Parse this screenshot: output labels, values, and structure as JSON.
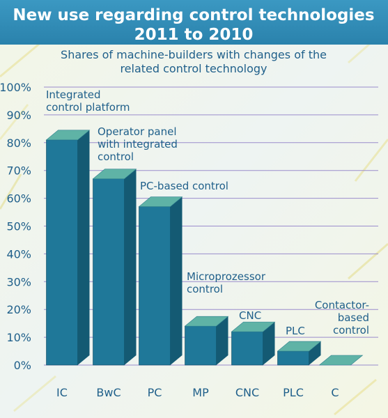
{
  "chart_data": {
    "type": "bar",
    "title_lines": [
      "New use regarding control technologies",
      "2011 to 2010"
    ],
    "subtitle_lines": [
      "Shares of machine-builders with changes of the",
      "related control technology"
    ],
    "categories": [
      "IC",
      "BwC",
      "PC",
      "MP",
      "CNC",
      "PLC",
      "C"
    ],
    "values": [
      81,
      67,
      57,
      14,
      12,
      5,
      0
    ],
    "y_ticks": [
      "0%",
      "10%",
      "20%",
      "30%",
      "40%",
      "50%",
      "60%",
      "70%",
      "80%",
      "90%",
      "100%"
    ],
    "ylim": [
      0,
      100
    ],
    "annotations": [
      [
        "Integrated",
        "control platform"
      ],
      [
        "Operator panel",
        "with integrated",
        "control"
      ],
      [
        "PC-based control"
      ],
      [
        "Microprozessor",
        "control"
      ],
      [
        "CNC"
      ],
      [
        "PLC"
      ],
      [
        "Contactor-",
        "based",
        "control"
      ]
    ],
    "grid": true,
    "colors": {
      "title_band": "#2f8fb8",
      "bar_front": "#1f7899",
      "bar_top": "#5fb3a6",
      "bar_side": "#145a73",
      "text": "#1f5f8a",
      "background": "#eef3ec",
      "grid": "#9a8ccc"
    }
  }
}
